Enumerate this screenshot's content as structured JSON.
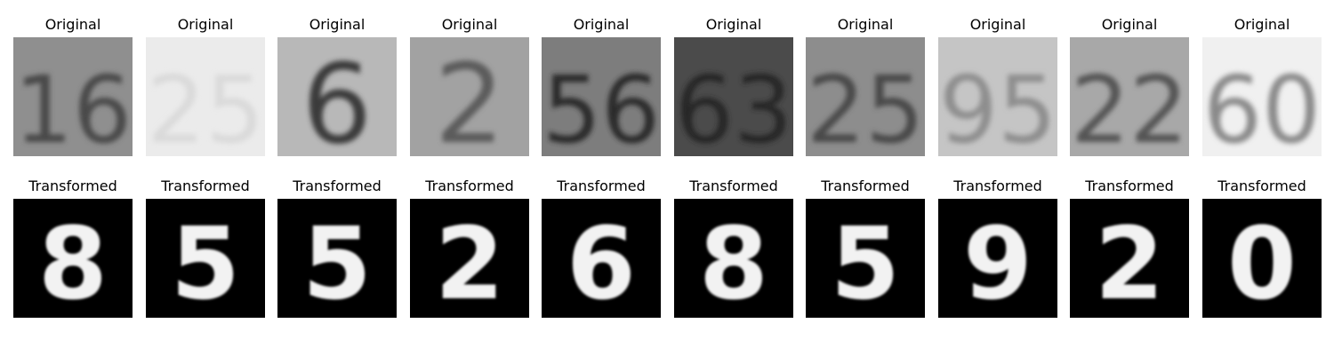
{
  "rows": [
    {
      "label": "Original",
      "images": [
        {
          "digits": "16",
          "bg": "#8f8f8f",
          "fg": "#4a4a4a"
        },
        {
          "digits": "25",
          "bg": "#ebebeb",
          "fg": "#dadada"
        },
        {
          "digits": "6",
          "bg": "#b8b8b8",
          "fg": "#3a3a3a"
        },
        {
          "digits": "2",
          "bg": "#a2a2a2",
          "fg": "#5c5c5c"
        },
        {
          "digits": "56",
          "bg": "#7d7d7d",
          "fg": "#2c2c2c"
        },
        {
          "digits": "63",
          "bg": "#4b4b4b",
          "fg": "#262626"
        },
        {
          "digits": "25",
          "bg": "#8d8d8d",
          "fg": "#4a4a4a"
        },
        {
          "digits": "95",
          "bg": "#c5c5c5",
          "fg": "#8e8e8e"
        },
        {
          "digits": "22",
          "bg": "#a8a8a8",
          "fg": "#555555"
        },
        {
          "digits": "60",
          "bg": "#f0f0f0",
          "fg": "#8a8a8a"
        }
      ]
    },
    {
      "label": "Transformed",
      "images": [
        {
          "digits": "8",
          "bg": "#000000",
          "fg": "#f2f2f2"
        },
        {
          "digits": "5",
          "bg": "#000000",
          "fg": "#f2f2f2"
        },
        {
          "digits": "5",
          "bg": "#000000",
          "fg": "#f2f2f2"
        },
        {
          "digits": "2",
          "bg": "#000000",
          "fg": "#f2f2f2"
        },
        {
          "digits": "6",
          "bg": "#000000",
          "fg": "#f2f2f2"
        },
        {
          "digits": "8",
          "bg": "#000000",
          "fg": "#f2f2f2"
        },
        {
          "digits": "5",
          "bg": "#000000",
          "fg": "#f2f2f2"
        },
        {
          "digits": "9",
          "bg": "#000000",
          "fg": "#f2f2f2"
        },
        {
          "digits": "2",
          "bg": "#000000",
          "fg": "#f2f2f2"
        },
        {
          "digits": "0",
          "bg": "#000000",
          "fg": "#f2f2f2"
        }
      ]
    }
  ]
}
